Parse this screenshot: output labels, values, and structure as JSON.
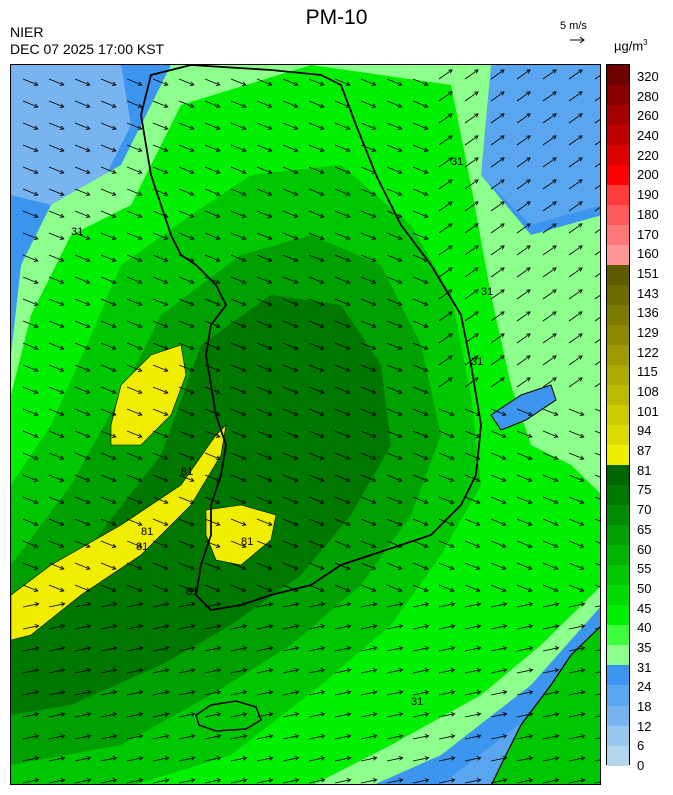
{
  "header": {
    "title": "PM-10",
    "agency": "NIER",
    "datetime": "DEC 07 2025 17:00 KST",
    "wind_reference": "5 m/s",
    "unit_base": "µg/m",
    "unit_exp": "3"
  },
  "colorbar": {
    "ticks": [
      "320",
      "280",
      "260",
      "240",
      "220",
      "200",
      "190",
      "180",
      "170",
      "160",
      "151",
      "143",
      "136",
      "129",
      "122",
      "115",
      "108",
      "101",
      "94",
      "87",
      "81",
      "75",
      "70",
      "65",
      "60",
      "55",
      "50",
      "45",
      "40",
      "35",
      "31",
      "24",
      "18",
      "12",
      "6",
      "0"
    ],
    "colors": [
      "#6e0000",
      "#8a0000",
      "#a50000",
      "#c00000",
      "#dc0000",
      "#ff0000",
      "#ff3c3c",
      "#ff5a5a",
      "#ff7878",
      "#ff9696",
      "#5e5a00",
      "#6d6a00",
      "#7d7a00",
      "#8c8a00",
      "#9c9a00",
      "#acaa00",
      "#bcba00",
      "#cccb00",
      "#dcdb00",
      "#f0ed00",
      "#006400",
      "#007800",
      "#008c00",
      "#00a000",
      "#00b400",
      "#00c800",
      "#00dc00",
      "#00f000",
      "#3cff3c",
      "#8cff8c",
      "#3c96f0",
      "#5aa5f0",
      "#78b4f0",
      "#96c8f0",
      "#b4d7f0"
    ]
  },
  "map": {
    "region": "Korean Peninsula",
    "water_color": "#3c96f0",
    "contour_labels": [
      "31",
      "31",
      "31",
      "31",
      "81",
      "81",
      "81",
      "81",
      "81",
      "31"
    ]
  }
}
